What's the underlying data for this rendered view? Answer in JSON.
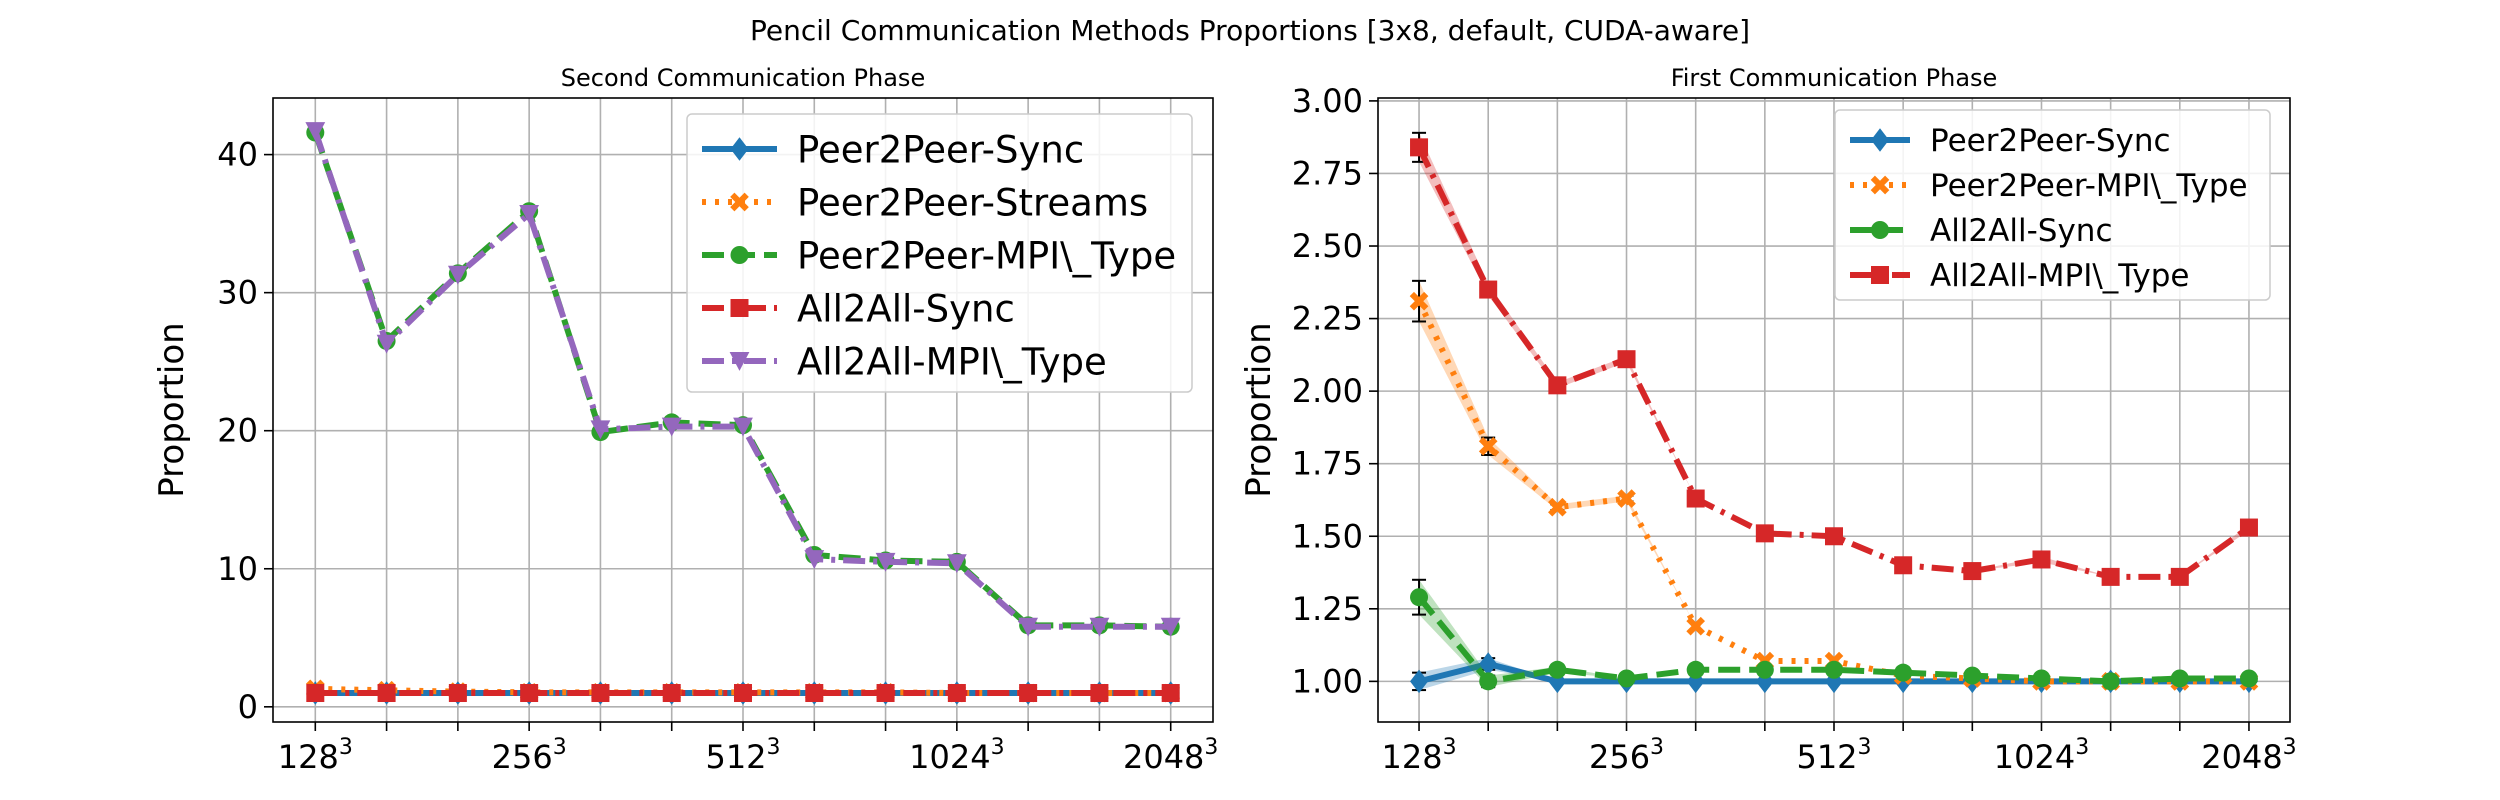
{
  "figure": {
    "suptitle": "Pencil Communication Methods Proportions [3x8, default, CUDA-aware]"
  },
  "x_categories": [
    "128",
    "",
    "",
    "256",
    "",
    "",
    "512",
    "",
    "",
    "1024",
    "",
    "",
    "2048"
  ],
  "x_tick_labels": [
    {
      "index": 0,
      "base": "128",
      "sup": "3"
    },
    {
      "index": 3,
      "base": "256",
      "sup": "3"
    },
    {
      "index": 6,
      "base": "512",
      "sup": "3"
    },
    {
      "index": 9,
      "base": "1024",
      "sup": "3"
    },
    {
      "index": 12,
      "base": "2048",
      "sup": "3"
    }
  ],
  "chart_data": [
    {
      "type": "line",
      "title": "Second Communication Phase",
      "xlabel": "",
      "ylabel": "Proportion",
      "ylim": [
        -1.1,
        44.1
      ],
      "yticks": [
        0,
        10,
        20,
        30,
        40
      ],
      "grid": true,
      "legend_position": "top-right",
      "series": [
        {
          "name": "Peer2Peer-Sync",
          "color": "#1f77b4",
          "dash": "solid",
          "marker": "diamond",
          "values": [
            1.0,
            1.0,
            1.0,
            1.0,
            1.0,
            1.0,
            1.0,
            1.0,
            1.0,
            1.0,
            1.0,
            1.0,
            1.0
          ]
        },
        {
          "name": "Peer2Peer-Streams",
          "color": "#ff7f0e",
          "dash": "dotted",
          "marker": "x",
          "values": [
            1.3,
            1.2,
            1.1,
            1.05,
            1.05,
            1.05,
            1.05,
            1.05,
            1.05,
            1.0,
            1.0,
            1.0,
            1.0
          ]
        },
        {
          "name": "Peer2Peer-MPI\\_Type",
          "color": "#2ca02c",
          "dash": "dashed",
          "marker": "circle",
          "values": [
            41.6,
            26.5,
            31.4,
            35.9,
            19.9,
            20.6,
            20.4,
            11.0,
            10.6,
            10.5,
            5.9,
            5.9,
            5.8
          ]
        },
        {
          "name": "All2All-Sync",
          "color": "#d62728",
          "dash": "dashdot",
          "marker": "square",
          "values": [
            1.0,
            1.0,
            1.0,
            1.0,
            1.0,
            1.0,
            1.0,
            1.0,
            1.0,
            1.0,
            1.0,
            1.0,
            1.0
          ]
        },
        {
          "name": "All2All-MPI\\_Type",
          "color": "#9467bd",
          "dash": "dashdot",
          "marker": "triangle-down",
          "values": [
            41.7,
            26.3,
            31.3,
            35.7,
            20.1,
            20.3,
            20.3,
            10.7,
            10.5,
            10.4,
            5.8,
            5.8,
            5.8
          ]
        }
      ]
    },
    {
      "type": "line",
      "title": "First Communication Phase",
      "xlabel": "",
      "ylabel": "Proportion",
      "ylim": [
        0.86,
        3.01
      ],
      "yticks": [
        1.0,
        1.25,
        1.5,
        1.75,
        2.0,
        2.25,
        2.5,
        2.75,
        3.0
      ],
      "grid": true,
      "legend_position": "top-right",
      "series": [
        {
          "name": "Peer2Peer-Sync",
          "color": "#1f77b4",
          "dash": "solid",
          "marker": "diamond",
          "values": [
            1.0,
            1.06,
            1.0,
            1.0,
            1.0,
            1.0,
            1.0,
            1.0,
            1.0,
            1.0,
            1.0,
            1.0,
            1.0
          ],
          "errors": [
            0.03,
            0.02,
            0.0,
            0.0,
            0.0,
            0.0,
            0.0,
            0.0,
            0.0,
            0.0,
            0.0,
            0.0,
            0.0
          ]
        },
        {
          "name": "Peer2Peer-MPI\\_Type",
          "color": "#ff7f0e",
          "dash": "dotted",
          "marker": "x",
          "values": [
            2.31,
            1.81,
            1.6,
            1.63,
            1.19,
            1.07,
            1.07,
            1.02,
            1.01,
            1.0,
            1.0,
            1.0,
            1.0
          ],
          "errors": [
            0.07,
            0.03,
            0.01,
            0.01,
            0.0,
            0.0,
            0.0,
            0.0,
            0.0,
            0.0,
            0.0,
            0.0,
            0.0
          ]
        },
        {
          "name": "All2All-Sync",
          "color": "#2ca02c",
          "dash": "dashed",
          "marker": "circle",
          "values": [
            1.29,
            1.0,
            1.04,
            1.01,
            1.04,
            1.04,
            1.04,
            1.03,
            1.02,
            1.01,
            1.0,
            1.01,
            1.01
          ],
          "errors": [
            0.06,
            0.02,
            0.01,
            0.0,
            0.0,
            0.0,
            0.0,
            0.0,
            0.0,
            0.0,
            0.0,
            0.0,
            0.0
          ]
        },
        {
          "name": "All2All-MPI\\_Type",
          "color": "#d62728",
          "dash": "dashdot",
          "marker": "square",
          "values": [
            2.84,
            2.35,
            2.02,
            2.11,
            1.63,
            1.51,
            1.5,
            1.4,
            1.38,
            1.42,
            1.36,
            1.36,
            1.53
          ],
          "errors": [
            0.05,
            0.02,
            0.01,
            0.01,
            0.0,
            0.0,
            0.0,
            0.0,
            0.0,
            0.01,
            0.0,
            0.0,
            0.01
          ]
        }
      ]
    }
  ]
}
